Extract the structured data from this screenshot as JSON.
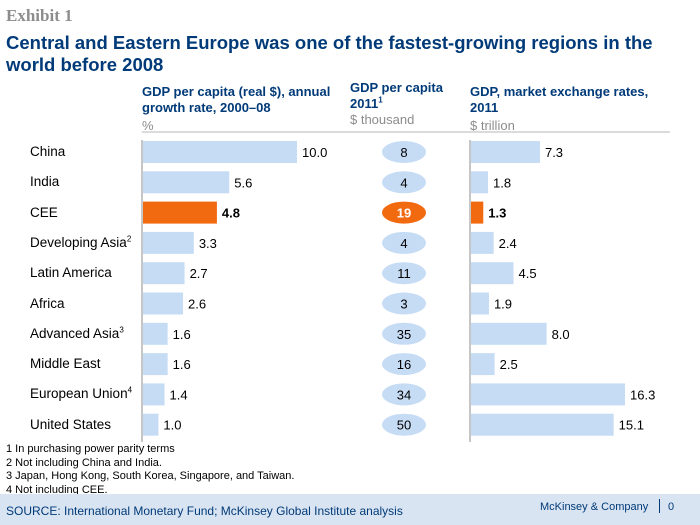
{
  "header": {
    "exhibit": "Exhibit 1",
    "title": "Central and Eastern Europe was one of the fastest-growing regions in the world before 2008"
  },
  "chart_data": {
    "type": "bar",
    "categories": [
      "China",
      "India",
      "CEE",
      "Developing Asia",
      "Latin America",
      "Africa",
      "Advanced Asia",
      "Middle East",
      "European Union",
      "United States"
    ],
    "category_superscripts": [
      "",
      "",
      "",
      "2",
      "",
      "",
      "3",
      "",
      "4",
      ""
    ],
    "highlight_category": "CEE",
    "highlight_color": "#f26a10",
    "bar_color": "#c6dcf5",
    "series": [
      {
        "name": "GDP per capita (real $), annual growth rate, 2000–08",
        "unit": "%",
        "values": [
          "10.0",
          "5.6",
          "4.8",
          "3.3",
          "2.7",
          "2.6",
          "1.6",
          "1.6",
          "1.4",
          "1.0"
        ],
        "xlim": [
          0,
          10.0
        ]
      },
      {
        "name": "GDP per capita 2011",
        "superscript": "1",
        "unit": "$ thousand",
        "values": [
          "8",
          "4",
          "19",
          "4",
          "11",
          "3",
          "35",
          "16",
          "34",
          "50"
        ]
      },
      {
        "name": "GDP, market exchange rates, 2011",
        "unit": "$ trillion",
        "values": [
          "7.3",
          "1.8",
          "1.3",
          "2.4",
          "4.5",
          "1.9",
          "8.0",
          "2.5",
          "16.3",
          "15.1"
        ],
        "xlim": [
          0,
          16.3
        ]
      }
    ]
  },
  "footnotes": [
    "1 In purchasing power parity terms",
    "2 Not including China and India.",
    "3 Japan, Hong Kong, South Korea, Singapore, and Taiwan.",
    "4 Not including CEE."
  ],
  "footer": {
    "source": "SOURCE: International Monetary Fund; McKinsey Global Institute analysis",
    "brand": "McKinsey & Company",
    "page": "0"
  }
}
